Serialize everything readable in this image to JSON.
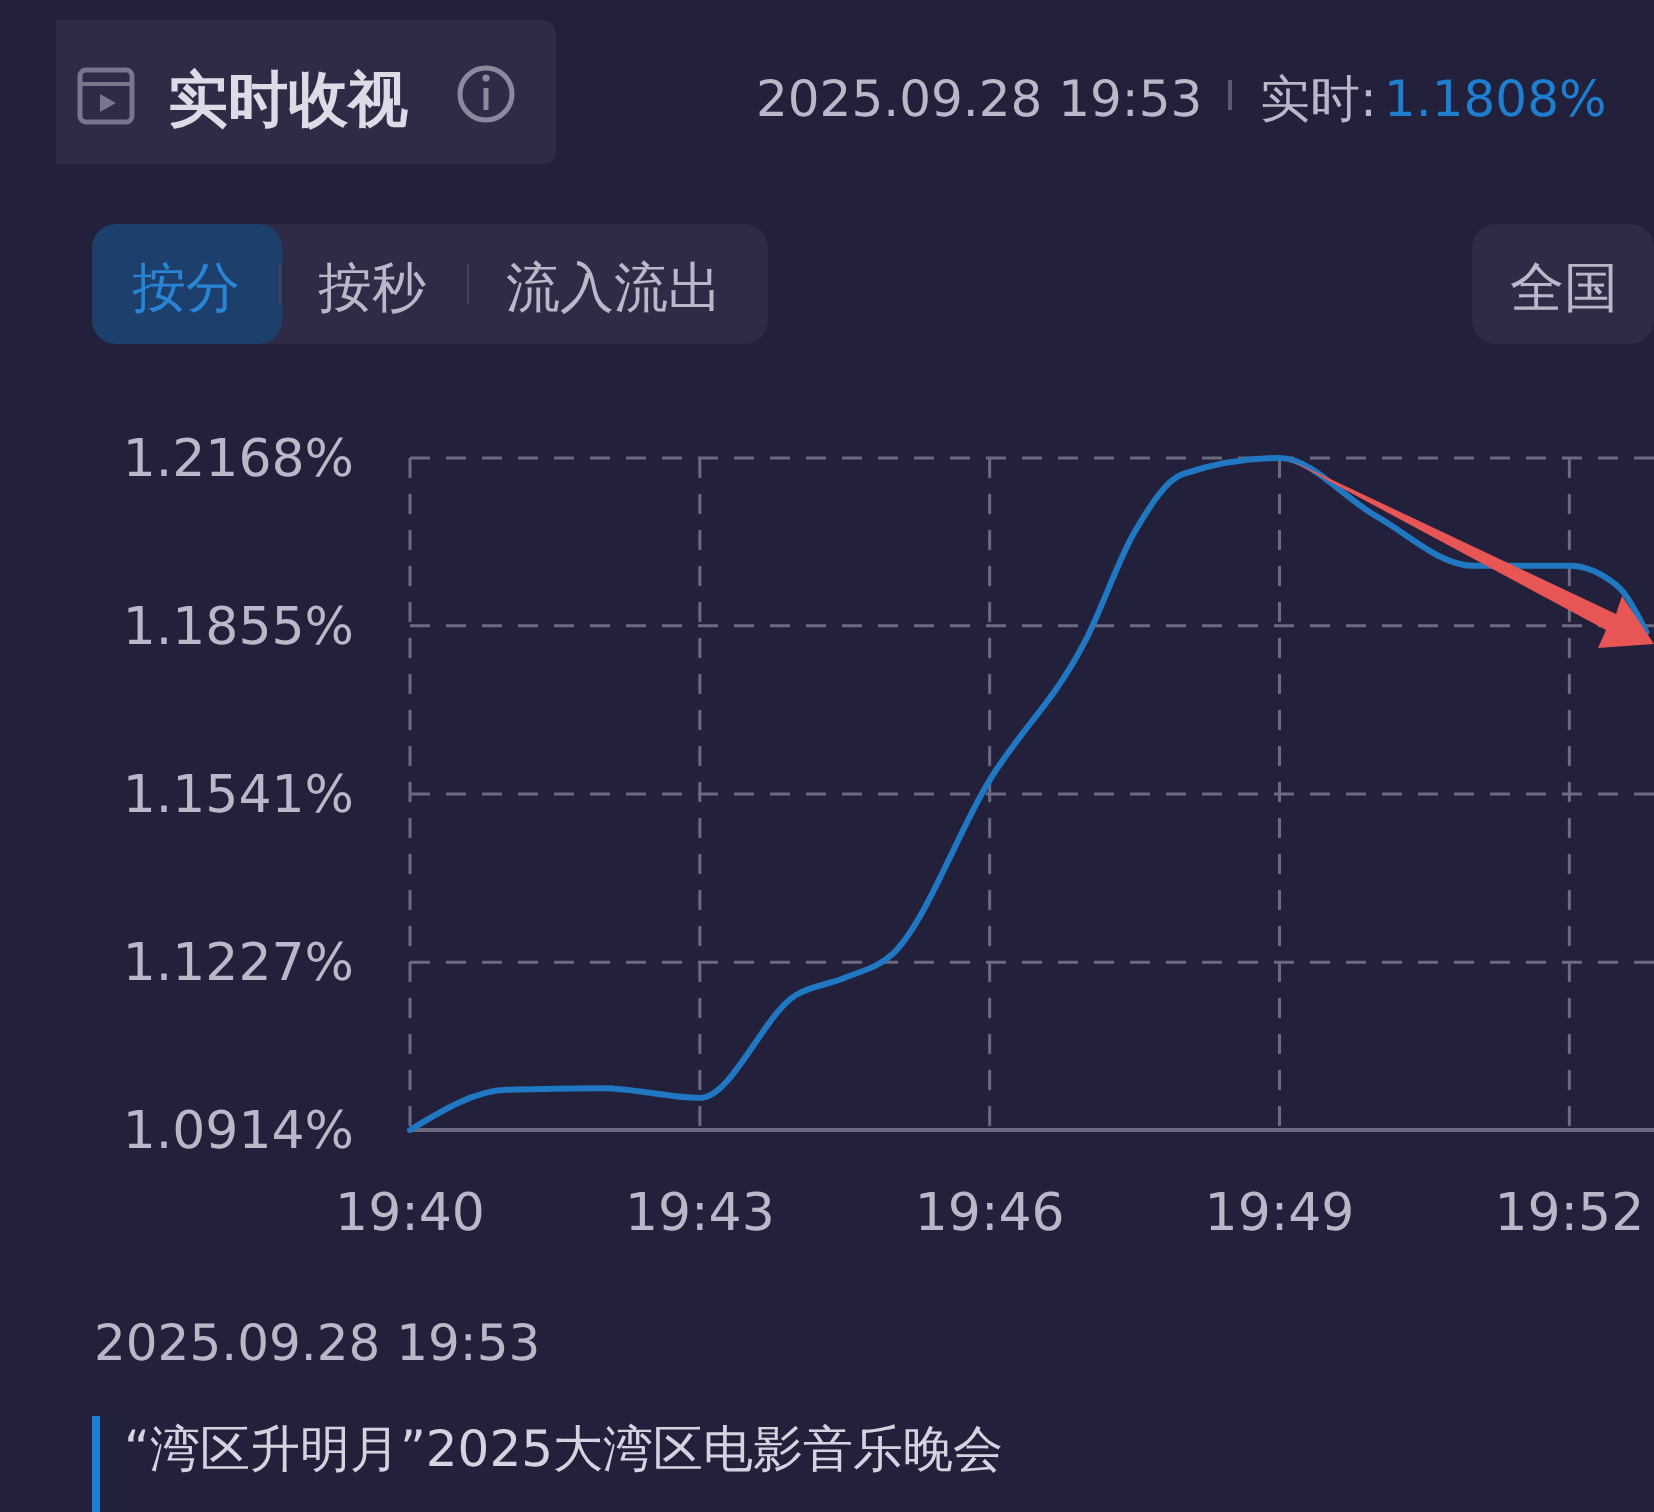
{
  "chart_data": {
    "type": "line",
    "title": "实时收视",
    "annotations": [
      "2025.09.28 19:53",
      "实时:",
      "1.1808%",
      "按分",
      "按秒",
      "流入流出",
      "全国",
      "2025.09.28 19:53",
      "“湾区升明月”2025大湾区电影音乐晚会"
    ],
    "x": [
      19.6667,
      19.6833,
      19.7,
      19.7167,
      19.7333,
      19.7417,
      19.75,
      19.7667,
      19.7833,
      19.7917,
      19.8,
      19.8167,
      19.8333,
      19.85,
      19.8667,
      19.875,
      19.88
    ],
    "series": [
      {
        "color": "#1f78c1",
        "values": [
          1.0914,
          1.0989,
          1.0992,
          1.0974,
          1.1166,
          1.1198,
          1.1243,
          1.1567,
          1.1829,
          1.203,
          1.2138,
          1.2168,
          1.206,
          1.1967,
          1.1967,
          1.1929,
          1.1843
        ]
      }
    ],
    "xlim": [
      19.6667,
      19.8813
    ],
    "xticks": [
      {
        "value": 19.6667,
        "label": "19:40"
      },
      {
        "value": 19.7167,
        "label": "19:43"
      },
      {
        "value": 19.7667,
        "label": "19:46"
      },
      {
        "value": 19.8167,
        "label": "19:49"
      },
      {
        "value": 19.8667,
        "label": "19:52"
      }
    ],
    "ylim": [
      1.0914,
      1.2168
    ],
    "yticks": [
      {
        "value": 1.0914,
        "label": "1.0914%"
      },
      {
        "value": 1.1227,
        "label": "1.1227%"
      },
      {
        "value": 1.1541,
        "label": "1.1541%"
      },
      {
        "value": 1.1855,
        "label": "1.1855%"
      },
      {
        "value": 1.2168,
        "label": "1.2168%"
      }
    ],
    "grid": true,
    "marker": "none",
    "line_style": "solid"
  }
}
